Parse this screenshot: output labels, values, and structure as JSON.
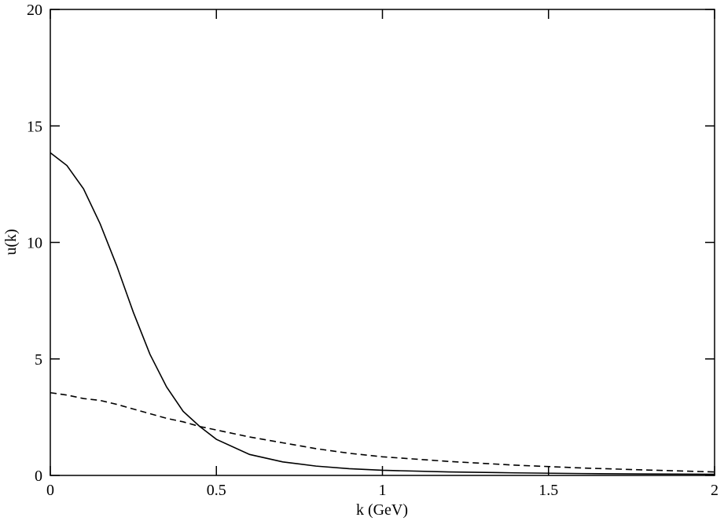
{
  "chart_data": {
    "type": "line",
    "x_label": "k (GeV)",
    "y_label": "u(k)",
    "x": [
      0,
      0.05,
      0.1,
      0.15,
      0.2,
      0.25,
      0.3,
      0.35,
      0.4,
      0.45,
      0.5,
      0.6,
      0.7,
      0.8,
      0.9,
      1,
      1.2,
      1.4,
      1.6,
      1.8,
      2
    ],
    "series": [
      {
        "color": "#000000",
        "linestyle": "solid",
        "values": [
          13.85,
          13.3,
          12.3,
          10.8,
          9.0,
          7.0,
          5.2,
          3.8,
          2.75,
          2.1,
          1.55,
          0.9,
          0.58,
          0.4,
          0.29,
          0.22,
          0.15,
          0.11,
          0.08,
          0.06,
          0.05
        ]
      },
      {
        "color": "#000000",
        "linestyle": "dashed",
        "values": [
          3.55,
          3.45,
          3.3,
          3.22,
          3.05,
          2.85,
          2.65,
          2.45,
          2.3,
          2.1,
          1.95,
          1.65,
          1.4,
          1.15,
          0.95,
          0.8,
          0.6,
          0.44,
          0.32,
          0.23,
          0.15
        ]
      }
    ],
    "xlim": [
      0,
      2
    ],
    "xticks": [
      0,
      0.5,
      1,
      1.5,
      2
    ],
    "ylim": [
      0,
      20
    ],
    "yticks": [
      0,
      5,
      10,
      15,
      20
    ]
  }
}
